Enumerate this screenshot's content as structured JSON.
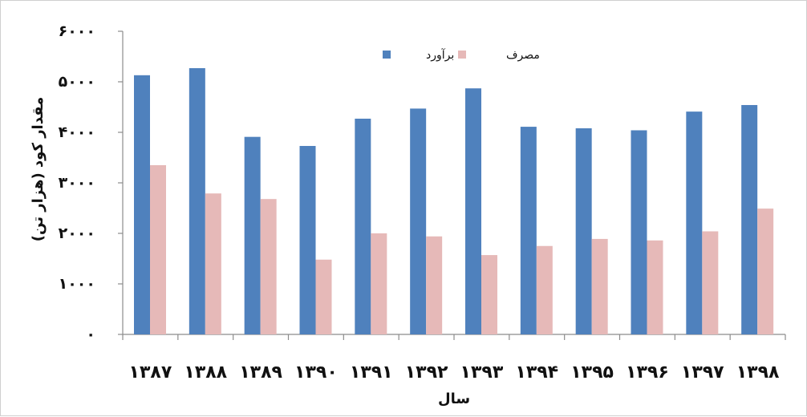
{
  "chart_data": {
    "type": "bar",
    "title": "",
    "xlabel": "سال",
    "ylabel": "مقدار کود (هزار تن)",
    "ylim": [
      0,
      6000
    ],
    "yticks": [
      "۰",
      "۱۰۰۰",
      "۲۰۰۰",
      "۳۰۰۰",
      "۴۰۰۰",
      "۵۰۰۰",
      "۶۰۰۰"
    ],
    "ytick_values": [
      0,
      1000,
      2000,
      3000,
      4000,
      5000,
      6000
    ],
    "categories": [
      "۱۳۸۷",
      "۱۳۸۸",
      "۱۳۸۹",
      "۱۳۹۰",
      "۱۳۹۱",
      "۱۳۹۲",
      "۱۳۹۳",
      "۱۳۹۴",
      "۱۳۹۵",
      "۱۳۹۶",
      "۱۳۹۷",
      "۱۳۹۸"
    ],
    "series": [
      {
        "name": "برآورد",
        "color": "#4f81bd",
        "values": [
          5130,
          5270,
          3910,
          3730,
          4270,
          4470,
          4870,
          4110,
          4080,
          4040,
          4410,
          4540
        ]
      },
      {
        "name": "مصرف",
        "color": "#e6b9b8",
        "values": [
          3350,
          2790,
          2680,
          1480,
          2000,
          1940,
          1570,
          1750,
          1890,
          1860,
          2040,
          2490
        ]
      }
    ],
    "legend": "top-center",
    "grid": false
  }
}
